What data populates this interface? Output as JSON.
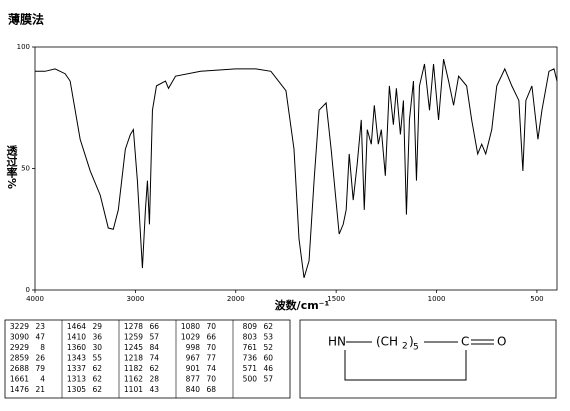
{
  "chart_data": {
    "type": "line",
    "title": "薄膜法",
    "x_label": "波数/cm⁻¹",
    "y_label": "透过率%",
    "color": "#000000",
    "xlim": [
      4000,
      400
    ],
    "x_scale_break": 2000,
    "xticks": [
      4000,
      3000,
      2000,
      1500,
      1000,
      500
    ],
    "ylim": [
      0,
      100
    ],
    "yticks": [
      0,
      50,
      100
    ],
    "x": [
      4000,
      3900,
      3800,
      3700,
      3650,
      3600,
      3550,
      3450,
      3350,
      3270,
      3220,
      3170,
      3100,
      3050,
      3020,
      2980,
      2930,
      2900,
      2880,
      2860,
      2830,
      2790,
      2700,
      2670,
      2600,
      2350,
      2000,
      1900,
      1825,
      1750,
      1710,
      1685,
      1660,
      1635,
      1610,
      1585,
      1550,
      1525,
      1485,
      1465,
      1450,
      1435,
      1415,
      1395,
      1375,
      1360,
      1345,
      1325,
      1310,
      1290,
      1275,
      1255,
      1235,
      1215,
      1200,
      1180,
      1165,
      1150,
      1135,
      1115,
      1100,
      1085,
      1060,
      1035,
      1015,
      990,
      965,
      940,
      915,
      890,
      850,
      825,
      795,
      775,
      755,
      725,
      700,
      660,
      625,
      590,
      570,
      555,
      525,
      495,
      475,
      440,
      415,
      400
    ],
    "values": [
      90,
      90,
      91,
      89,
      86,
      74,
      62,
      49,
      39,
      25.5,
      25,
      33,
      58,
      64,
      66,
      45,
      9,
      33,
      45,
      27,
      74,
      84,
      86,
      83,
      88,
      90,
      91,
      91,
      90,
      82,
      58,
      21,
      5,
      12,
      45,
      74,
      77,
      58,
      23,
      27,
      33,
      56,
      37,
      52,
      70,
      33,
      66,
      60,
      76,
      60,
      66,
      47,
      84,
      68,
      83,
      64,
      78,
      31,
      70,
      86,
      45,
      84,
      93,
      74,
      93,
      70,
      95,
      86,
      76,
      88,
      84,
      70,
      56,
      60,
      56,
      66,
      84,
      91,
      84,
      78,
      49,
      78,
      84,
      62,
      74,
      90,
      91,
      86
    ]
  },
  "table": {
    "rows": [
      [
        [
          3229,
          23
        ],
        [
          1464,
          29
        ],
        [
          1278,
          66
        ],
        [
          1080,
          70
        ],
        [
          809,
          62
        ]
      ],
      [
        [
          3090,
          47
        ],
        [
          1410,
          36
        ],
        [
          1259,
          57
        ],
        [
          1029,
          66
        ],
        [
          803,
          53
        ]
      ],
      [
        [
          2929,
          8
        ],
        [
          1360,
          30
        ],
        [
          1245,
          84
        ],
        [
          998,
          70
        ],
        [
          761,
          52
        ]
      ],
      [
        [
          2859,
          26
        ],
        [
          1343,
          55
        ],
        [
          1218,
          74
        ],
        [
          967,
          77
        ],
        [
          736,
          60
        ]
      ],
      [
        [
          2688,
          79
        ],
        [
          1337,
          62
        ],
        [
          1182,
          62
        ],
        [
          901,
          74
        ],
        [
          571,
          46
        ]
      ],
      [
        [
          1661,
          4
        ],
        [
          1313,
          62
        ],
        [
          1162,
          28
        ],
        [
          877,
          70
        ],
        [
          500,
          57
        ]
      ],
      [
        [
          1476,
          21
        ],
        [
          1305,
          62
        ],
        [
          1101,
          43
        ],
        [
          840,
          68
        ]
      ]
    ]
  },
  "structure": {
    "left": "HN",
    "group": "(CH",
    "sub": "2",
    "close": ")",
    "n": "5",
    "right": "C",
    "oxygen": "O"
  }
}
